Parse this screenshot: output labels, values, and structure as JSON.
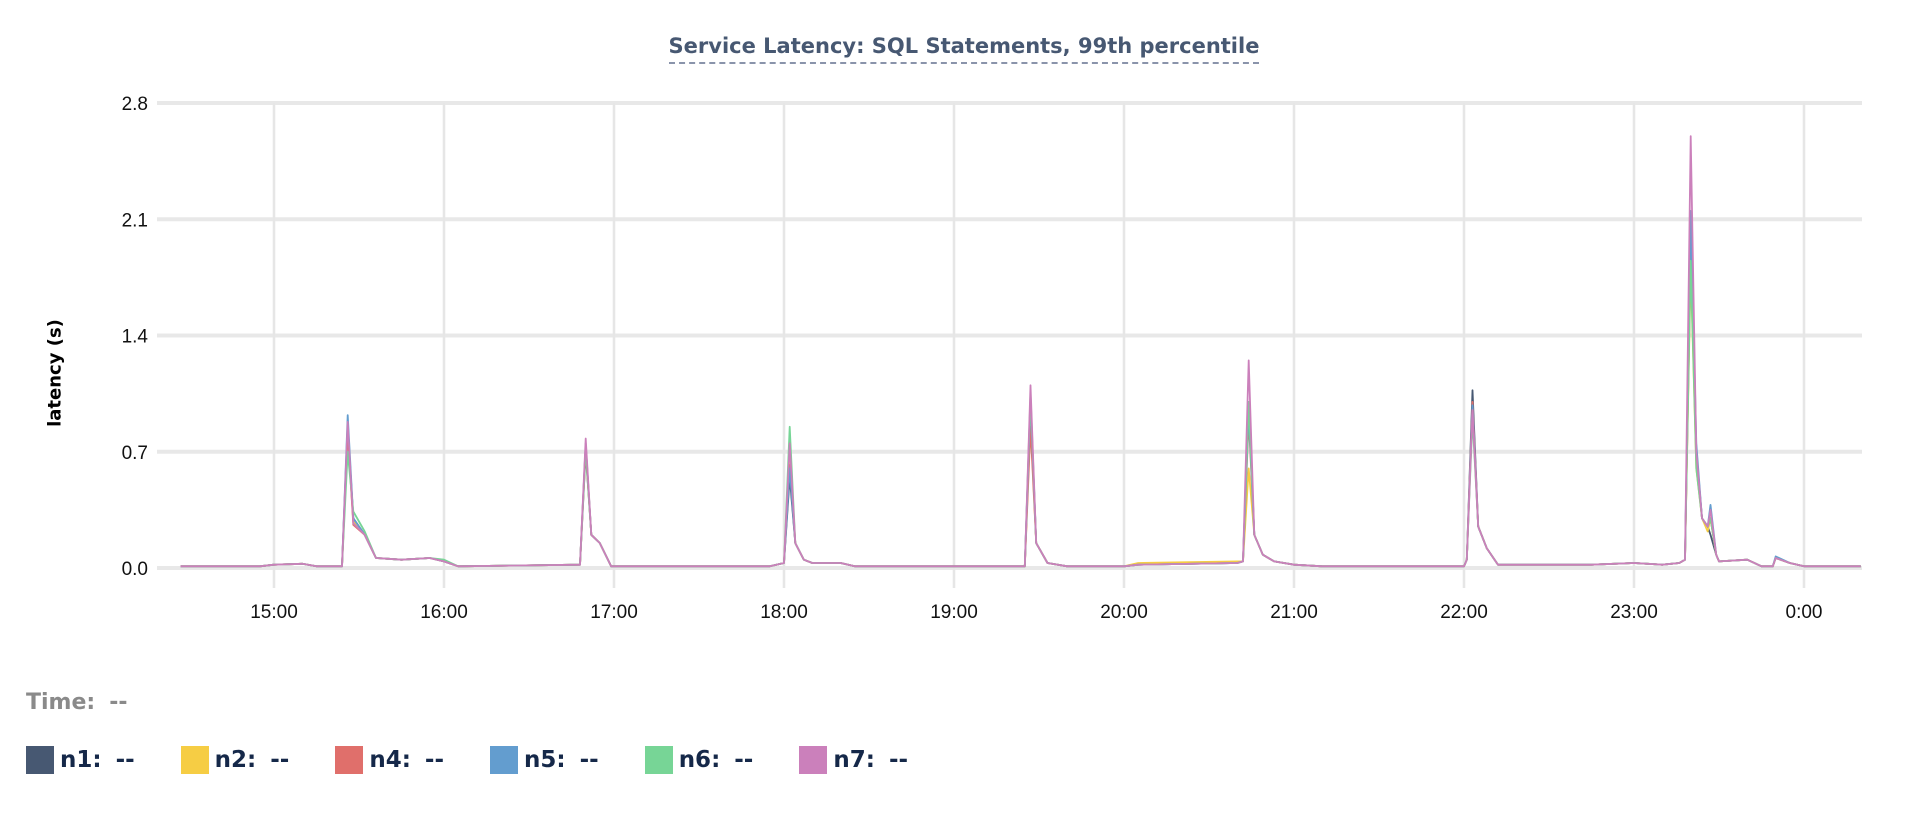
{
  "chart_data": {
    "type": "line",
    "title": "Service Latency: SQL Statements, 99th percentile",
    "xlabel": "",
    "ylabel": "latency (s)",
    "xlim": [
      "14:27",
      "00:20"
    ],
    "ylim": [
      0,
      2.8
    ],
    "yticks": [
      "0.0",
      "0.7",
      "1.4",
      "2.1",
      "2.8"
    ],
    "xticks": [
      "15:00",
      "16:00",
      "17:00",
      "18:00",
      "19:00",
      "20:00",
      "21:00",
      "22:00",
      "23:00",
      "0:00"
    ],
    "grid": true,
    "legend_position": "bottom",
    "x": [
      "14:27",
      "14:55",
      "15:00",
      "15:10",
      "15:15",
      "15:24",
      "15:26",
      "15:28",
      "15:32",
      "15:36",
      "15:45",
      "15:55",
      "16:00",
      "16:05",
      "16:48",
      "16:50",
      "16:52",
      "16:55",
      "16:59",
      "17:55",
      "18:00",
      "18:02",
      "18:04",
      "18:07",
      "18:10",
      "18:20",
      "18:25",
      "19:25",
      "19:27",
      "19:29",
      "19:33",
      "19:40",
      "20:00",
      "20:05",
      "20:40",
      "20:42",
      "20:44",
      "20:46",
      "20:49",
      "20:53",
      "21:00",
      "21:10",
      "22:00",
      "22:01",
      "22:03",
      "22:05",
      "22:08",
      "22:12",
      "22:45",
      "23:00",
      "23:10",
      "23:16",
      "23:18",
      "23:20",
      "23:22",
      "23:24",
      "23:26",
      "23:27",
      "23:29",
      "23:30",
      "23:40",
      "23:45",
      "23:49",
      "23:50",
      "23:55",
      "00:00",
      "00:20"
    ],
    "series": [
      {
        "name": "n1",
        "color": "#475872",
        "values": [
          0.01,
          0.01,
          0.02,
          0.025,
          0.01,
          0.01,
          0.85,
          0.3,
          0.2,
          0.06,
          0.05,
          0.06,
          0.04,
          0.01,
          0.02,
          0.7,
          0.2,
          0.15,
          0.01,
          0.01,
          0.03,
          0.55,
          0.15,
          0.05,
          0.03,
          0.03,
          0.01,
          0.01,
          1.0,
          0.15,
          0.03,
          0.01,
          0.01,
          0.02,
          0.03,
          0.04,
          1.0,
          0.2,
          0.08,
          0.04,
          0.02,
          0.01,
          0.01,
          0.05,
          1.07,
          0.25,
          0.12,
          0.02,
          0.02,
          0.03,
          0.02,
          0.03,
          0.05,
          2.0,
          0.7,
          0.3,
          0.25,
          0.2,
          0.08,
          0.04,
          0.05,
          0.01,
          0.01,
          0.06,
          0.03,
          0.01,
          0.01
        ]
      },
      {
        "name": "n2",
        "color": "#f6cd44",
        "values": [
          0.01,
          0.01,
          0.02,
          0.025,
          0.01,
          0.01,
          0.8,
          0.28,
          0.2,
          0.06,
          0.05,
          0.06,
          0.04,
          0.01,
          0.02,
          0.72,
          0.2,
          0.15,
          0.01,
          0.01,
          0.03,
          0.7,
          0.15,
          0.05,
          0.03,
          0.03,
          0.01,
          0.01,
          0.9,
          0.15,
          0.03,
          0.01,
          0.01,
          0.03,
          0.04,
          0.04,
          0.6,
          0.2,
          0.08,
          0.04,
          0.02,
          0.01,
          0.01,
          0.05,
          0.95,
          0.25,
          0.12,
          0.02,
          0.02,
          0.03,
          0.02,
          0.03,
          0.05,
          1.8,
          0.6,
          0.3,
          0.22,
          0.3,
          0.08,
          0.04,
          0.05,
          0.01,
          0.01,
          0.06,
          0.03,
          0.01,
          0.01
        ]
      },
      {
        "name": "n4",
        "color": "#e06f6b",
        "values": [
          0.01,
          0.01,
          0.02,
          0.025,
          0.01,
          0.01,
          0.82,
          0.26,
          0.2,
          0.06,
          0.05,
          0.06,
          0.04,
          0.01,
          0.02,
          0.74,
          0.2,
          0.15,
          0.01,
          0.01,
          0.03,
          0.62,
          0.15,
          0.05,
          0.03,
          0.03,
          0.01,
          0.01,
          0.85,
          0.15,
          0.03,
          0.01,
          0.01,
          0.02,
          0.03,
          0.04,
          0.9,
          0.2,
          0.08,
          0.04,
          0.02,
          0.01,
          0.01,
          0.05,
          1.0,
          0.25,
          0.12,
          0.02,
          0.02,
          0.03,
          0.02,
          0.03,
          0.05,
          1.9,
          0.65,
          0.3,
          0.25,
          0.3,
          0.08,
          0.04,
          0.05,
          0.01,
          0.01,
          0.06,
          0.03,
          0.01,
          0.01
        ]
      },
      {
        "name": "n5",
        "color": "#639dcf",
        "values": [
          0.01,
          0.01,
          0.02,
          0.025,
          0.01,
          0.01,
          0.92,
          0.3,
          0.2,
          0.06,
          0.05,
          0.06,
          0.04,
          0.01,
          0.02,
          0.75,
          0.2,
          0.15,
          0.01,
          0.01,
          0.03,
          0.6,
          0.15,
          0.05,
          0.03,
          0.03,
          0.01,
          0.01,
          1.02,
          0.15,
          0.03,
          0.01,
          0.01,
          0.02,
          0.03,
          0.04,
          0.95,
          0.2,
          0.08,
          0.04,
          0.02,
          0.01,
          0.01,
          0.05,
          0.98,
          0.25,
          0.12,
          0.02,
          0.02,
          0.03,
          0.02,
          0.03,
          0.05,
          2.15,
          0.75,
          0.3,
          0.25,
          0.38,
          0.08,
          0.04,
          0.05,
          0.01,
          0.01,
          0.07,
          0.03,
          0.01,
          0.01
        ]
      },
      {
        "name": "n6",
        "color": "#77d596",
        "values": [
          0.01,
          0.01,
          0.02,
          0.025,
          0.01,
          0.01,
          0.7,
          0.34,
          0.22,
          0.06,
          0.05,
          0.06,
          0.05,
          0.01,
          0.02,
          0.73,
          0.2,
          0.15,
          0.01,
          0.01,
          0.03,
          0.85,
          0.15,
          0.05,
          0.03,
          0.03,
          0.01,
          0.01,
          1.05,
          0.15,
          0.03,
          0.01,
          0.01,
          0.02,
          0.03,
          0.04,
          1.0,
          0.2,
          0.08,
          0.04,
          0.02,
          0.01,
          0.01,
          0.05,
          0.9,
          0.25,
          0.12,
          0.02,
          0.02,
          0.03,
          0.02,
          0.03,
          0.05,
          1.85,
          0.6,
          0.3,
          0.25,
          0.3,
          0.08,
          0.04,
          0.05,
          0.01,
          0.01,
          0.06,
          0.03,
          0.01,
          0.01
        ]
      },
      {
        "name": "n7",
        "color": "#cb80bb",
        "values": [
          0.01,
          0.01,
          0.02,
          0.025,
          0.01,
          0.01,
          0.88,
          0.27,
          0.2,
          0.06,
          0.05,
          0.06,
          0.04,
          0.01,
          0.02,
          0.78,
          0.2,
          0.15,
          0.01,
          0.01,
          0.03,
          0.75,
          0.15,
          0.05,
          0.03,
          0.03,
          0.01,
          0.01,
          1.1,
          0.15,
          0.03,
          0.01,
          0.01,
          0.02,
          0.03,
          0.04,
          1.25,
          0.2,
          0.08,
          0.04,
          0.02,
          0.01,
          0.01,
          0.05,
          0.95,
          0.25,
          0.12,
          0.02,
          0.02,
          0.03,
          0.02,
          0.03,
          0.05,
          2.6,
          0.7,
          0.3,
          0.25,
          0.35,
          0.08,
          0.04,
          0.05,
          0.01,
          0.01,
          0.06,
          0.03,
          0.01,
          0.01
        ]
      }
    ]
  },
  "hover": {
    "time_label": "Time:",
    "time_value": "--"
  },
  "legend": [
    {
      "label": "n1:",
      "value": "--"
    },
    {
      "label": "n2:",
      "value": "--"
    },
    {
      "label": "n4:",
      "value": "--"
    },
    {
      "label": "n5:",
      "value": "--"
    },
    {
      "label": "n6:",
      "value": "--"
    },
    {
      "label": "n7:",
      "value": "--"
    }
  ]
}
